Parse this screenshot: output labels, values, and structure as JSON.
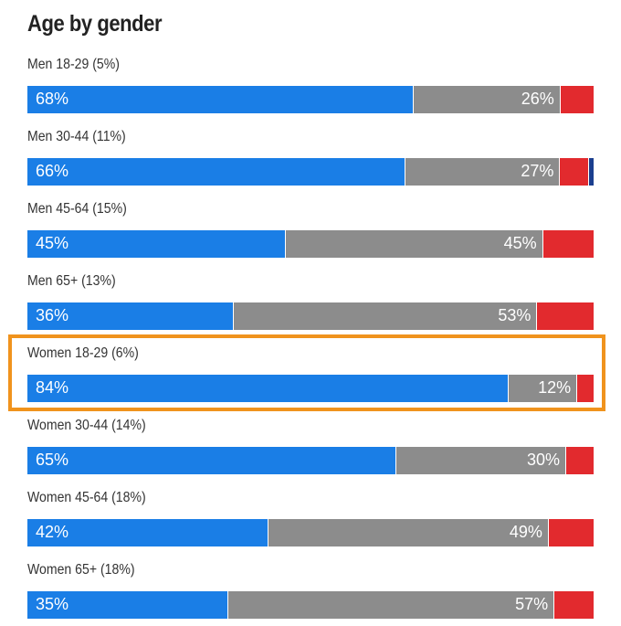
{
  "chart_data": {
    "type": "bar",
    "orientation": "horizontal",
    "stacked": true,
    "title": "Age by gender",
    "groups": [
      {
        "label": "Men 18-29 (5%)",
        "dem": 68,
        "rep": 26,
        "oth": 6,
        "ind": 0
      },
      {
        "label": "Men 30-44 (11%)",
        "dem": 66,
        "rep": 27,
        "oth": 5,
        "ind": 1
      },
      {
        "label": "Men 45-64 (15%)",
        "dem": 45,
        "rep": 45,
        "oth": 9,
        "ind": 0
      },
      {
        "label": "Men 65+ (13%)",
        "dem": 36,
        "rep": 53,
        "oth": 10,
        "ind": 0
      },
      {
        "label": "Women 18-29 (6%)",
        "dem": 84,
        "rep": 12,
        "oth": 3,
        "ind": 0,
        "highlighted": true
      },
      {
        "label": "Women 30-44 (14%)",
        "dem": 65,
        "rep": 30,
        "oth": 5,
        "ind": 0
      },
      {
        "label": "Women 45-64 (18%)",
        "dem": 42,
        "rep": 49,
        "oth": 8,
        "ind": 0
      },
      {
        "label": "Women 65+ (18%)",
        "dem": 35,
        "rep": 57,
        "oth": 7,
        "ind": 0
      }
    ],
    "colors": {
      "dem": "#1a7ee6",
      "rep": "#8c8c8c",
      "oth": "#e22a2e",
      "ind": "#1b3f8f",
      "highlight": "#f0931d"
    },
    "xlim": [
      0,
      100
    ],
    "grid": false
  }
}
